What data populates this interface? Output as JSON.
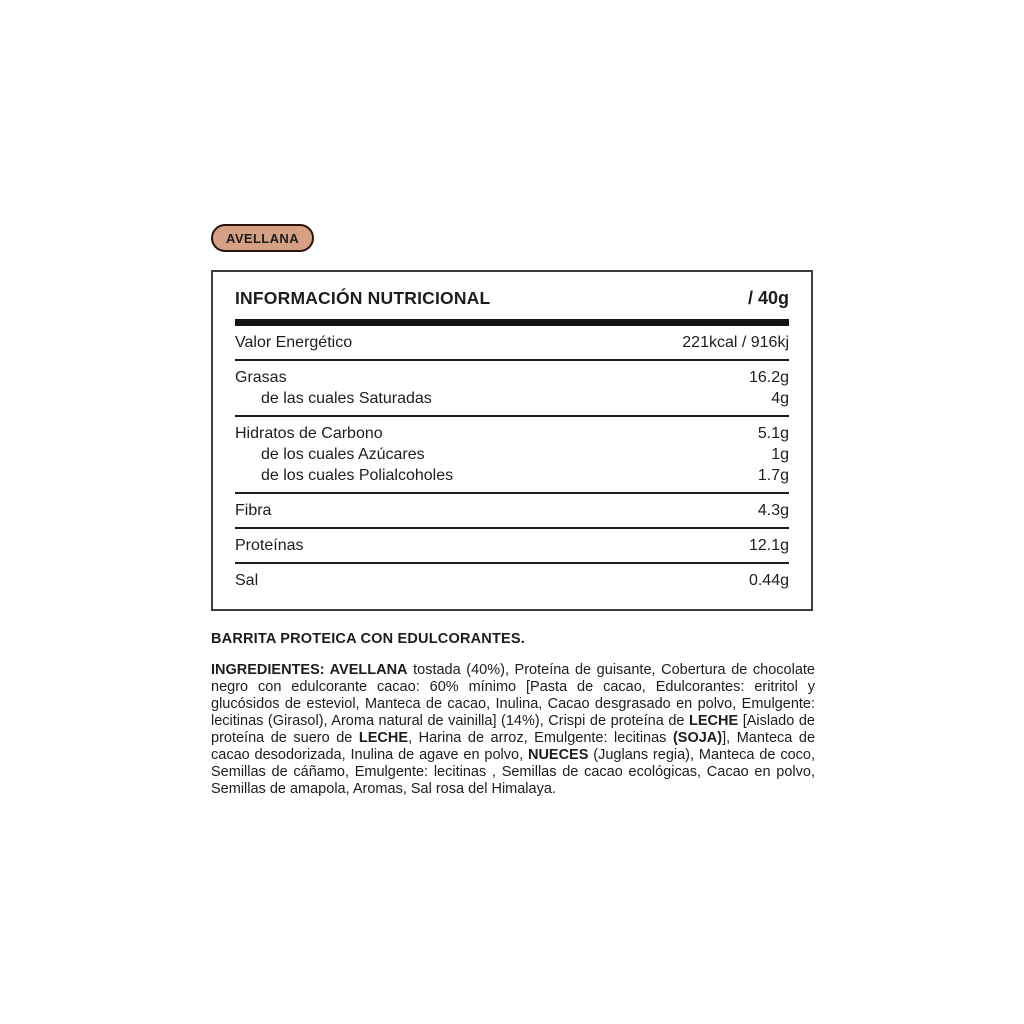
{
  "colors": {
    "background": "#ffffff",
    "text": "#1d1d1b",
    "badge_bg": "#d5a083",
    "badge_border": "#27150d",
    "table_border": "#3c3c3b",
    "divider": "#1d1d1b",
    "thick_bar": "#141414"
  },
  "badge": {
    "label": "AVELLANA"
  },
  "nutrition_table": {
    "title": "INFORMACIÓN NUTRICIONAL",
    "serving": "/ 40g",
    "groups": [
      {
        "rows": [
          {
            "label": "Valor Energético",
            "value": "221kcal / 916kj",
            "sub": false
          }
        ]
      },
      {
        "rows": [
          {
            "label": "Grasas",
            "value": "16.2g",
            "sub": false
          },
          {
            "label": "de las cuales Saturadas",
            "value": "4g",
            "sub": true
          }
        ]
      },
      {
        "rows": [
          {
            "label": "Hidratos de Carbono",
            "value": "5.1g",
            "sub": false
          },
          {
            "label": "de los cuales Azúcares",
            "value": "1g",
            "sub": true
          },
          {
            "label": "de los cuales Polialcoholes",
            "value": "1.7g",
            "sub": true
          }
        ]
      },
      {
        "rows": [
          {
            "label": "Fibra",
            "value": "4.3g",
            "sub": false
          }
        ]
      },
      {
        "rows": [
          {
            "label": "Proteínas",
            "value": "12.1g",
            "sub": false
          }
        ]
      },
      {
        "rows": [
          {
            "label": "Sal",
            "value": "0.44g",
            "sub": false
          }
        ]
      }
    ]
  },
  "description": "BARRITA PROTEICA CON EDULCORANTES.",
  "ingredients": {
    "segments": [
      {
        "text": "INGREDIENTES: AVELLANA",
        "bold": true
      },
      {
        "text": " tostada (40%), Proteína de guisante, Cobertura de chocolate negro con edulcorante cacao: 60% mínimo [Pasta de cacao, Edulcorantes: eritritol y glucósidos de esteviol, Manteca de cacao, Inulina, Cacao desgrasado en polvo, Emulgente: lecitinas (Girasol), Aroma natural de vainilla] (14%), Crispi de proteína de ",
        "bold": false
      },
      {
        "text": "LECHE",
        "bold": true
      },
      {
        "text": " [Aislado de proteína de suero de ",
        "bold": false
      },
      {
        "text": "LECHE",
        "bold": true
      },
      {
        "text": ", Harina de arroz, Emulgente: lecitinas ",
        "bold": false
      },
      {
        "text": "(SOJA)",
        "bold": true
      },
      {
        "text": "], Manteca de cacao desodorizada, Inulina de agave en polvo, ",
        "bold": false
      },
      {
        "text": "NUECES",
        "bold": true
      },
      {
        "text": " (Juglans regia), Manteca de coco, Semillas de cáñamo, Emulgente: lecitinas , Semillas de cacao ecológicas, Cacao en polvo, Semillas de amapola, Aromas, Sal rosa del Himalaya.",
        "bold": false
      }
    ]
  }
}
